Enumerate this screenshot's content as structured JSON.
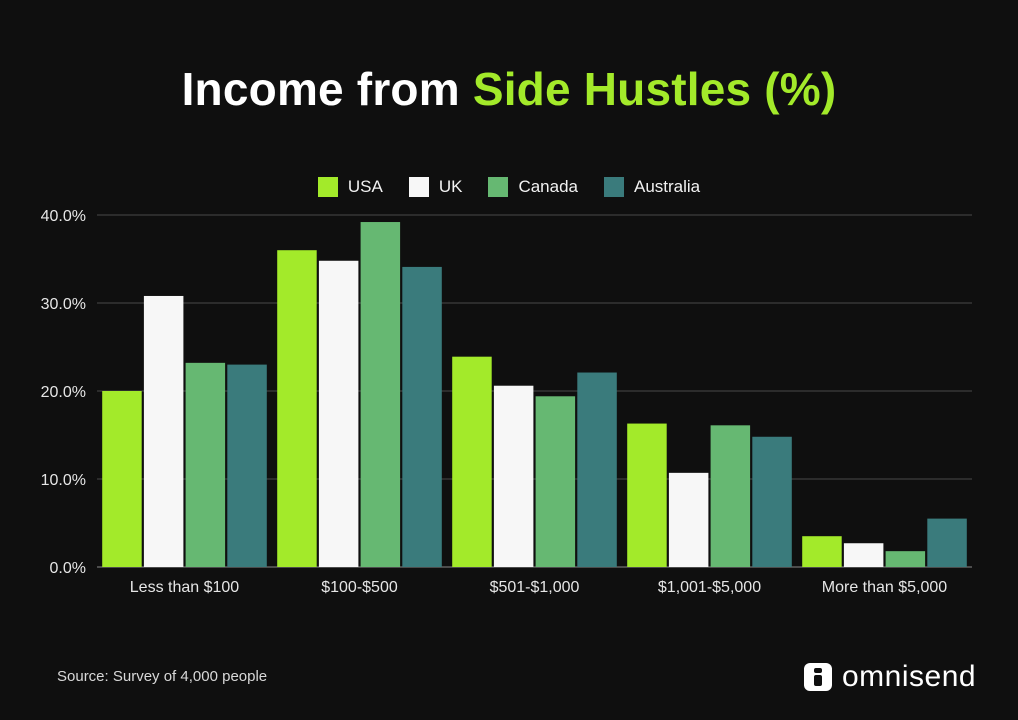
{
  "title": {
    "part1": "Income from ",
    "part2": "Side Hustles (%)"
  },
  "source": "Source: Survey of 4,000 people",
  "brand": {
    "name": "omnisend",
    "icon": "omnisend-logo-icon"
  },
  "colors": {
    "background": "#0f0f0f",
    "accent": "#a3ea2a",
    "gridline": "#4a4a4a"
  },
  "chart_data": {
    "type": "bar",
    "title": "Income from Side Hustles (%)",
    "categories": [
      "Less than $100",
      "$100-$500",
      "$501-$1,000",
      "$1,001-$5,000",
      "More than $5,000"
    ],
    "series": [
      {
        "name": "USA",
        "color": "#a3ea2a",
        "values": [
          20.0,
          36.0,
          23.9,
          16.3,
          3.5
        ]
      },
      {
        "name": "UK",
        "color": "#f7f7f7",
        "values": [
          30.8,
          34.8,
          20.6,
          10.7,
          2.7
        ]
      },
      {
        "name": "Canada",
        "color": "#66b872",
        "values": [
          23.2,
          39.2,
          19.4,
          16.1,
          1.8
        ]
      },
      {
        "name": "Australia",
        "color": "#3a7b7c",
        "values": [
          23.0,
          34.1,
          22.1,
          14.8,
          5.5
        ]
      }
    ],
    "yticks": [
      "0.0%",
      "10.0%",
      "20.0%",
      "30.0%",
      "40.0%"
    ],
    "ylim": [
      0,
      40
    ],
    "legend_position": "top-center",
    "grid": true
  }
}
